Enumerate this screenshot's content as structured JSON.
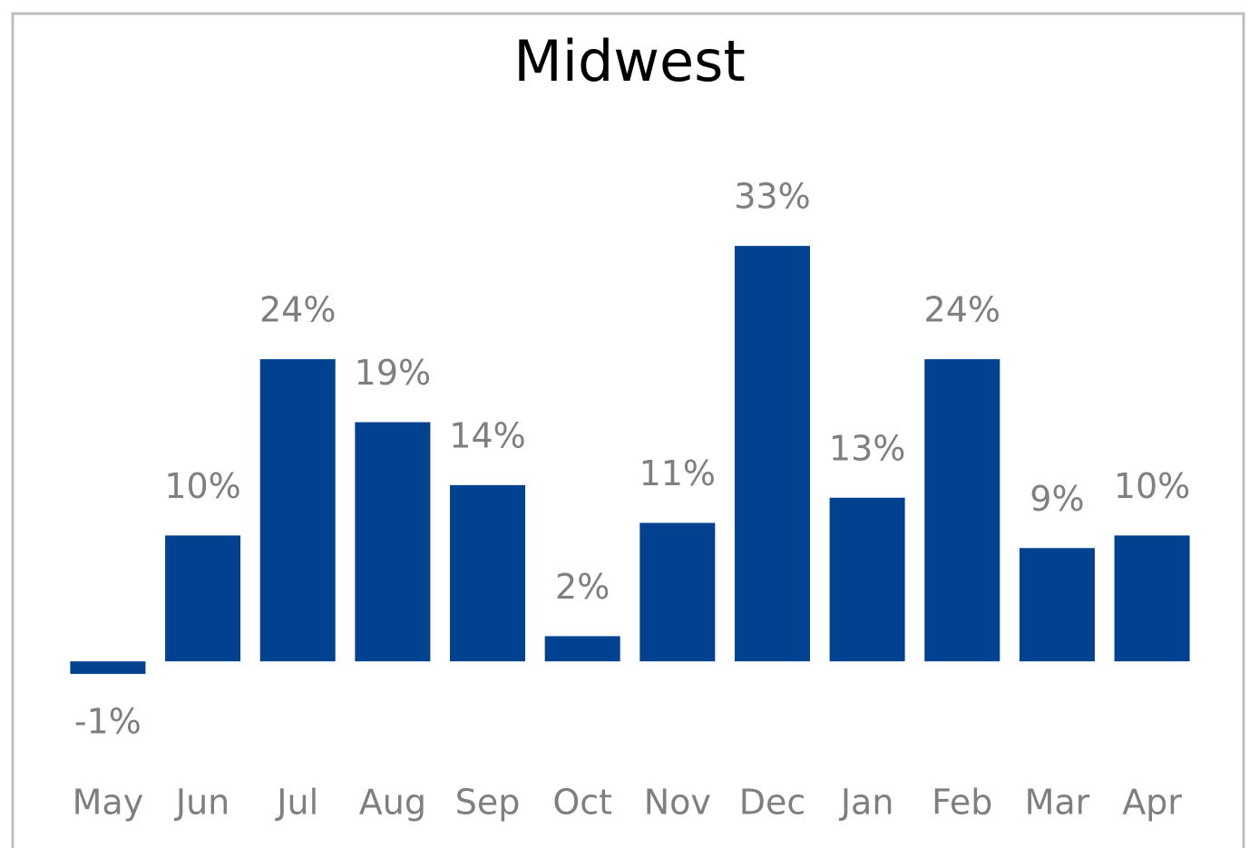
{
  "chart_data": {
    "type": "bar",
    "title": "Midwest",
    "categories": [
      "May",
      "Jun",
      "Jul",
      "Aug",
      "Sep",
      "Oct",
      "Nov",
      "Dec",
      "Jan",
      "Feb",
      "Mar",
      "Apr"
    ],
    "values": [
      -1,
      10,
      24,
      19,
      14,
      2,
      11,
      33,
      13,
      24,
      9,
      10
    ],
    "value_labels": [
      "-1%",
      "10%",
      "24%",
      "19%",
      "14%",
      "2%",
      "11%",
      "33%",
      "13%",
      "24%",
      "9%",
      "10%"
    ],
    "color": "#00428f",
    "ylim": [
      -10,
      40
    ]
  }
}
